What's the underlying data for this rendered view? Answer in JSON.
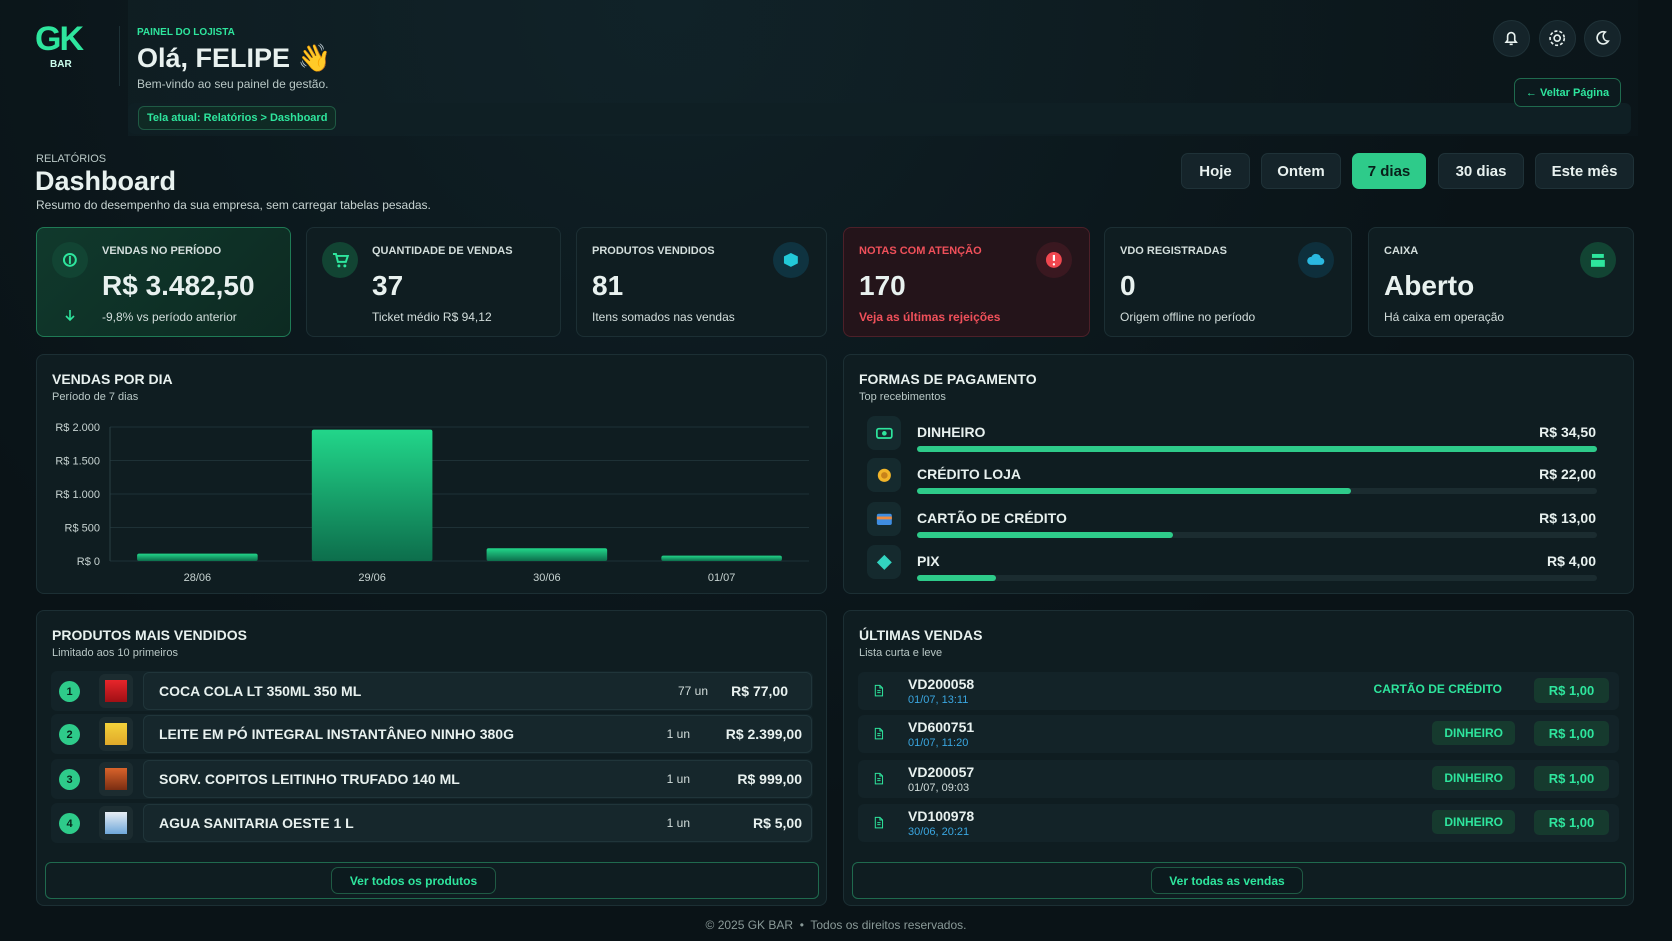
{
  "header": {
    "logo": "GK",
    "logo_sub": "BAR",
    "eyebrow": "PAINEL DO LOJISTA",
    "greeting": "Olá, FELIPE 👋",
    "welcome": "Bem-vindo ao seu painel de gestão.",
    "breadcrumb": "Tela atual: Relatórios > Dashboard",
    "back": "← Veltar Página"
  },
  "section": {
    "eyebrow": "RELATÓRIOS",
    "title": "Dashboard",
    "subtitle": "Resumo do desempenho da sua empresa, sem carregar tabelas pesadas."
  },
  "periods": {
    "options": [
      "Hoje",
      "Ontem",
      "7 dias",
      "30 dias",
      "Este mês"
    ],
    "active": 2
  },
  "kpis": [
    {
      "label": "VENDAS NO PERÍODO",
      "value": "R$ 3.482,50",
      "note": "-9,8% vs período anterior"
    },
    {
      "label": "QUANTIDADE DE VENDAS",
      "value": "37",
      "note": "Ticket médio R$ 94,12"
    },
    {
      "label": "PRODUTOS VENDIDOS",
      "value": "81",
      "note": "Itens somados nas vendas"
    },
    {
      "label": "NOTAS COM ATENÇÃO",
      "value": "170",
      "note": "Veja as últimas rejeições"
    },
    {
      "label": "VDO REGISTRADAS",
      "value": "0",
      "note": "Origem offline no período"
    },
    {
      "label": "CAIXA",
      "value": "Aberto",
      "note": "Há caixa em operação"
    }
  ],
  "sales_chart": {
    "type": "bar",
    "title": "VENDAS POR DIA",
    "subtitle": "Período de 7 dias",
    "categories": [
      "28/06",
      "29/06",
      "30/06",
      "01/07"
    ],
    "values": [
      110,
      1960,
      190,
      80
    ],
    "ylim": [
      0,
      2000
    ],
    "yticks": [
      {
        "value": 0,
        "label": "R$ 0"
      },
      {
        "value": 500,
        "label": "R$ 500"
      },
      {
        "value": 1000,
        "label": "R$ 1.000"
      },
      {
        "value": 1500,
        "label": "R$ 1.500"
      },
      {
        "value": 2000,
        "label": "R$ 2.000"
      }
    ],
    "color": "#22d68a",
    "grid": true
  },
  "payments": {
    "title": "FORMAS DE PAGAMENTO",
    "subtitle": "Top recebimentos",
    "items": [
      {
        "name": "DINHEIRO",
        "value": 34.5,
        "label": "R$ 34,50"
      },
      {
        "name": "CRÉDITO LOJA",
        "value": 22,
        "label": "R$ 22,00"
      },
      {
        "name": "CARTÃO DE CRÉDITO",
        "value": 13,
        "label": "R$ 13,00"
      },
      {
        "name": "PIX",
        "value": 4,
        "label": "R$ 4,00"
      }
    ]
  },
  "products": {
    "title": "PRODUTOS MAIS VENDIDOS",
    "subtitle": "Limitado aos 10 primeiros",
    "rows": [
      {
        "rank": "1",
        "name": "COCA COLA LT 350ML 350 ML",
        "qty": "77 un",
        "total": "R$ 77,00"
      },
      {
        "rank": "2",
        "name": "LEITE EM PÓ INTEGRAL INSTANTÂNEO NINHO 380G",
        "qty": "1 un",
        "total": "R$ 2.399,00"
      },
      {
        "rank": "3",
        "name": "SORV. COPITOS LEITINHO TRUFADO 140 ML",
        "qty": "1 un",
        "total": "R$ 999,00"
      },
      {
        "rank": "4",
        "name": "AGUA SANITARIA OESTE 1 L",
        "qty": "1 un",
        "total": "R$ 5,00"
      }
    ],
    "button": "Ver todos os produtos"
  },
  "sales": {
    "title": "ÚLTIMAS VENDAS",
    "subtitle": "Lista curta e leve",
    "rows": [
      {
        "id": "VD200058",
        "date": "01/07, 13:11",
        "method": "CARTÃO DE CRÉDITO",
        "total": "R$ 1,00"
      },
      {
        "id": "VD600751",
        "date": "01/07, 11:20",
        "method": "DINHEIRO",
        "total": "R$ 1,00"
      },
      {
        "id": "VD200057",
        "date": "01/07, 09:03",
        "method": "DINHEIRO",
        "total": "R$ 1,00"
      },
      {
        "id": "VD100978",
        "date": "30/06, 20:21",
        "method": "DINHEIRO",
        "total": "R$ 1,00"
      }
    ],
    "button": "Ver todas as vendas"
  },
  "footer": "© 2025 GK BAR  •  Todos os direitos reservados."
}
